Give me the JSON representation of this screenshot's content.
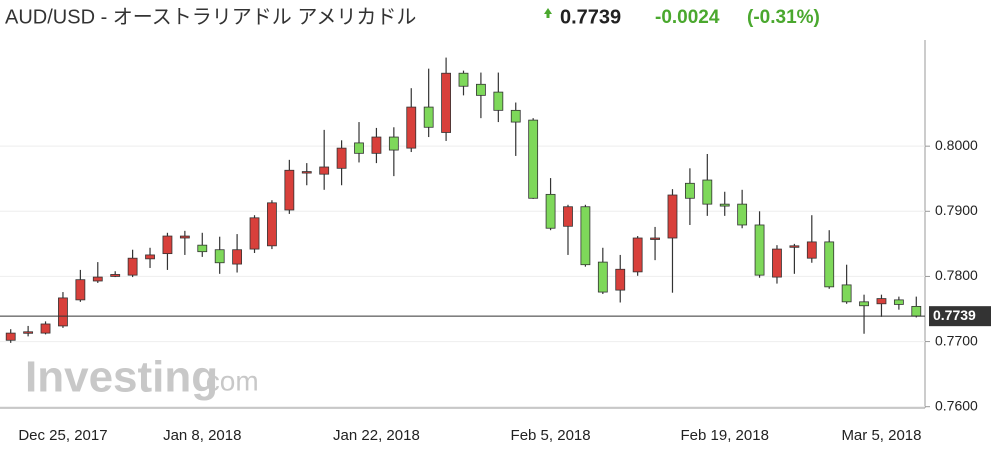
{
  "chart_data": {
    "type": "candlestick",
    "title": "AUD/USD - オーストラリアドル アメリカドル",
    "last_price": 0.7739,
    "change": -0.0024,
    "change_percent": {
      "value": -0.31,
      "label": "(-0.31%)"
    },
    "watermark": [
      "Investing",
      ".com"
    ],
    "categories": [
      null,
      null,
      null,
      "Dec 25, 2017",
      null,
      null,
      null,
      null,
      null,
      null,
      null,
      "Jan 8, 2018",
      null,
      null,
      null,
      null,
      null,
      null,
      null,
      null,
      null,
      "Jan 22, 2018",
      null,
      null,
      null,
      null,
      null,
      null,
      null,
      null,
      null,
      "Feb 5, 2018",
      null,
      null,
      null,
      null,
      null,
      null,
      null,
      null,
      null,
      "Feb 19, 2018",
      null,
      null,
      null,
      null,
      null,
      null,
      null,
      null,
      "Mar 5, 2018",
      null,
      null
    ],
    "open": [
      0.7702,
      0.7713,
      0.7713,
      0.7724,
      0.7764,
      0.7793,
      0.78,
      0.7802,
      0.7827,
      0.7835,
      0.7859,
      0.7848,
      0.7841,
      0.7819,
      0.7842,
      0.7847,
      0.7902,
      0.796,
      0.7957,
      0.7966,
      0.8005,
      0.7989,
      0.8014,
      0.7997,
      0.806,
      0.8021,
      0.8112,
      0.8095,
      0.8083,
      0.8055,
      0.804,
      0.7926,
      0.7877,
      0.7907,
      0.7822,
      0.7779,
      0.7807,
      0.7858,
      0.7859,
      0.7943,
      0.7948,
      0.7911,
      0.7911,
      0.7879,
      0.7799,
      0.7846,
      0.7828,
      0.7853,
      0.7787,
      0.7761,
      0.7758,
      0.7764,
      0.7754
    ],
    "high": [
      0.7719,
      0.7724,
      0.7731,
      0.7776,
      0.781,
      0.7822,
      0.7808,
      0.7841,
      0.7844,
      0.7867,
      0.787,
      0.7867,
      0.7861,
      0.7865,
      0.7894,
      0.7917,
      0.7979,
      0.7974,
      0.8025,
      0.8009,
      0.8037,
      0.8028,
      0.8029,
      0.8089,
      0.8119,
      0.8136,
      0.8116,
      0.8113,
      0.8113,
      0.8067,
      0.8043,
      0.7951,
      0.791,
      0.791,
      0.7844,
      0.7833,
      0.7862,
      0.7876,
      0.7934,
      0.7966,
      0.7988,
      0.793,
      0.7933,
      0.79,
      0.7848,
      0.785,
      0.7894,
      0.7871,
      0.7818,
      0.7772,
      0.7772,
      0.7769,
      0.7769
    ],
    "low": [
      0.7698,
      0.7708,
      0.7711,
      0.7721,
      0.7761,
      0.779,
      0.7799,
      0.7799,
      0.7813,
      0.781,
      0.7833,
      0.783,
      0.7804,
      0.7806,
      0.7836,
      0.7842,
      0.7896,
      0.794,
      0.7933,
      0.794,
      0.7975,
      0.7974,
      0.7954,
      0.7991,
      0.8014,
      0.8008,
      0.8078,
      0.8043,
      0.8037,
      0.7985,
      0.7919,
      0.7871,
      0.7833,
      0.7815,
      0.7773,
      0.776,
      0.7801,
      0.7825,
      0.7775,
      0.7879,
      0.7893,
      0.7893,
      0.7874,
      0.7798,
      0.7789,
      0.7804,
      0.7821,
      0.7781,
      0.7758,
      0.7712,
      0.7738,
      0.7749,
      0.7737
    ],
    "close": [
      0.7713,
      0.7715,
      0.7727,
      0.7767,
      0.7795,
      0.7799,
      0.7803,
      0.7828,
      0.7833,
      0.7862,
      0.7862,
      0.7838,
      0.7821,
      0.7841,
      0.789,
      0.7913,
      0.7963,
      0.7961,
      0.7968,
      0.7997,
      0.7989,
      0.8014,
      0.7994,
      0.806,
      0.8029,
      0.8112,
      0.8092,
      0.8078,
      0.8055,
      0.8037,
      0.792,
      0.7874,
      0.7907,
      0.7818,
      0.7776,
      0.7811,
      0.7859,
      0.7859,
      0.7925,
      0.792,
      0.7911,
      0.7908,
      0.7879,
      0.7802,
      0.7842,
      0.7847,
      0.7853,
      0.7784,
      0.7761,
      0.7755,
      0.7766,
      0.7757,
      0.7739
    ],
    "up_color": "#d8403b",
    "down_color": "#7ed85a",
    "change_color": "#4aa82e",
    "ylim": [
      0.7598,
      0.8163
    ],
    "yticks": [
      {
        "value": 0.76,
        "label": "0.7600"
      },
      {
        "value": 0.77,
        "label": "0.7700"
      },
      {
        "value": 0.78,
        "label": "0.7800"
      },
      {
        "value": 0.79,
        "label": "0.7900"
      },
      {
        "value": 0.8,
        "label": "0.8000"
      }
    ],
    "grid": true
  }
}
